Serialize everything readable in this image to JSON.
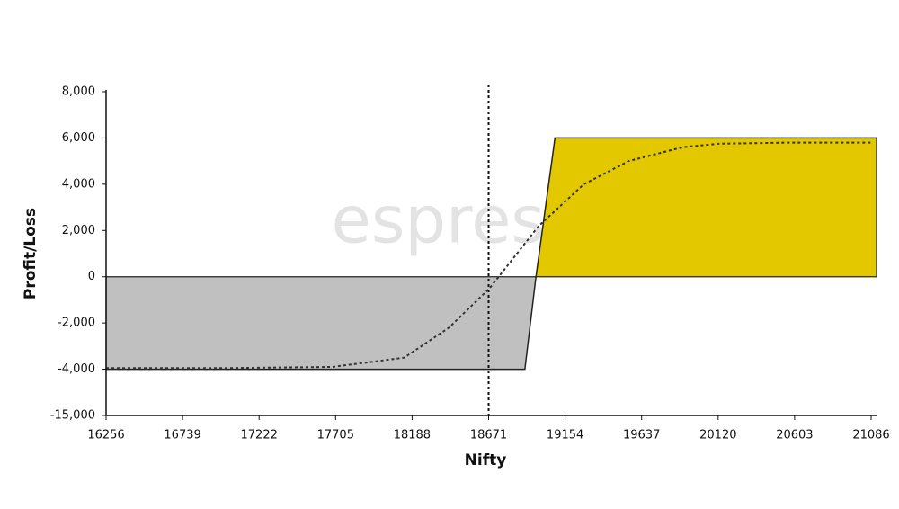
{
  "chart_data": {
    "type": "payoff",
    "watermark": "espresso",
    "x_label": "Nifty",
    "y_label": "Profit/Loss",
    "xlim": [
      16256,
      21120
    ],
    "xticks": [
      16256,
      16739,
      17222,
      17705,
      18188,
      18671,
      19154,
      19637,
      20120,
      20603,
      21086
    ],
    "ylim": [
      -15000,
      8000
    ],
    "yticks": [
      {
        "value": -15000,
        "label": "-15,000"
      },
      {
        "value": -4000,
        "label": "-4,000"
      },
      {
        "value": -2000,
        "label": "-2,000"
      },
      0,
      {
        "value": 2000,
        "label": "2,000"
      },
      {
        "value": 4000,
        "label": "4,000"
      },
      {
        "value": 6000,
        "label": "6,000"
      },
      {
        "value": 8000,
        "label": "8,000"
      }
    ],
    "marker_x": 18671,
    "payoff": {
      "x": [
        16256,
        18900,
        18970,
        19090,
        21120
      ],
      "values": [
        -4000,
        -4000,
        0,
        6000,
        6000
      ],
      "color": "#222222",
      "fill_positive": "#e3c800",
      "fill_negative": "#c0c0c0"
    },
    "curve": {
      "x": [
        16256,
        17004,
        17684,
        18138,
        18421,
        18677,
        18988,
        19272,
        19555,
        19895,
        20122,
        20576,
        21086
      ],
      "values": [
        -3950,
        -3950,
        -3900,
        -3500,
        -2200,
        -500,
        2200,
        4000,
        5000,
        5600,
        5750,
        5800,
        5800
      ],
      "color": "#333333",
      "dash": "3,3"
    }
  }
}
